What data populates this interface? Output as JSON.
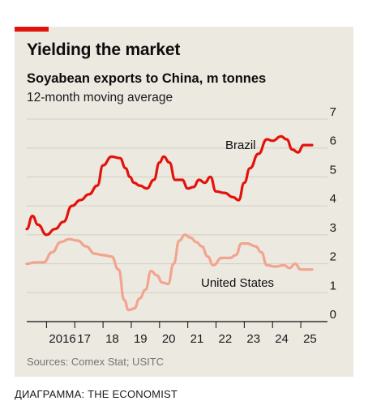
{
  "header": {
    "title": "Yielding the market",
    "subtitle": "Soyabean exports to China, m tonnes",
    "note": "12-month moving average"
  },
  "footer": {
    "source": "Sources: Comex Stat; USITC",
    "credit": "ДИАГРАММА: THE ECONOMIST"
  },
  "colors": {
    "accent": "#e3120b",
    "brazil": "#e3120b",
    "united_states": "#f2a48e",
    "background": "#ece9e1",
    "grid": "#d2cec4"
  },
  "chart_data": {
    "type": "line",
    "title": "Soyabean exports to China, m tonnes",
    "subtitle": "12-month moving average",
    "xlim": [
      2015.3,
      2025.6
    ],
    "ylim": [
      0,
      7
    ],
    "yticks": [
      0,
      1,
      2,
      3,
      4,
      5,
      6,
      7
    ],
    "xticks": [
      {
        "value": 2016,
        "label": "2016"
      },
      {
        "value": 2017,
        "label": "17"
      },
      {
        "value": 2018,
        "label": "18"
      },
      {
        "value": 2019,
        "label": "19"
      },
      {
        "value": 2020,
        "label": "20"
      },
      {
        "value": 2021,
        "label": "21"
      },
      {
        "value": 2022,
        "label": "22"
      },
      {
        "value": 2023,
        "label": "23"
      },
      {
        "value": 2024,
        "label": "24"
      },
      {
        "value": 2025,
        "label": "25"
      }
    ],
    "series": [
      {
        "name": "Brazil",
        "color": "#e3120b",
        "x": [
          2015.3,
          2015.5,
          2015.7,
          2016.0,
          2016.3,
          2016.6,
          2016.9,
          2017.2,
          2017.5,
          2017.8,
          2018.0,
          2018.3,
          2018.6,
          2018.8,
          2018.95,
          2019.1,
          2019.3,
          2019.55,
          2019.8,
          2020.0,
          2020.15,
          2020.35,
          2020.55,
          2020.8,
          2021.0,
          2021.2,
          2021.4,
          2021.6,
          2021.8,
          2022.0,
          2022.3,
          2022.6,
          2022.8,
          2023.0,
          2023.2,
          2023.5,
          2023.8,
          2024.0,
          2024.3,
          2024.5,
          2024.7,
          2024.9,
          2025.1,
          2025.3,
          2025.4
        ],
        "y": [
          3.2,
          3.65,
          3.35,
          3.0,
          3.2,
          3.45,
          4.0,
          4.2,
          4.4,
          4.7,
          5.4,
          5.7,
          5.65,
          5.3,
          5.0,
          4.8,
          4.7,
          4.6,
          4.9,
          5.5,
          5.7,
          5.5,
          4.9,
          4.9,
          4.6,
          4.65,
          4.9,
          4.8,
          5.0,
          4.5,
          4.45,
          4.3,
          4.2,
          4.8,
          5.3,
          5.8,
          6.3,
          6.25,
          6.4,
          6.3,
          5.95,
          5.85,
          6.1,
          6.1,
          6.1
        ]
      },
      {
        "name": "United States",
        "color": "#f2a48e",
        "x": [
          2015.3,
          2015.6,
          2015.9,
          2016.2,
          2016.5,
          2016.8,
          2017.1,
          2017.4,
          2017.7,
          2018.0,
          2018.3,
          2018.55,
          2018.75,
          2018.9,
          2019.1,
          2019.3,
          2019.5,
          2019.7,
          2019.9,
          2020.1,
          2020.3,
          2020.5,
          2020.7,
          2020.9,
          2021.1,
          2021.3,
          2021.5,
          2021.7,
          2021.9,
          2022.2,
          2022.5,
          2022.7,
          2022.9,
          2023.1,
          2023.4,
          2023.6,
          2023.8,
          2024.1,
          2024.4,
          2024.6,
          2024.8,
          2025.0,
          2025.2,
          2025.4
        ],
        "y": [
          2.0,
          2.05,
          2.05,
          2.4,
          2.75,
          2.85,
          2.8,
          2.6,
          2.35,
          2.3,
          2.25,
          1.8,
          0.75,
          0.4,
          0.45,
          0.8,
          1.1,
          1.75,
          1.6,
          1.35,
          1.3,
          2.0,
          2.8,
          3.0,
          2.9,
          2.75,
          2.6,
          2.25,
          1.95,
          2.2,
          2.2,
          2.3,
          2.7,
          2.7,
          2.6,
          2.4,
          1.95,
          1.9,
          1.95,
          1.85,
          2.0,
          1.8,
          1.8,
          1.8
        ]
      }
    ],
    "annotations": [
      {
        "text": "Brazil",
        "series": "Brazil"
      },
      {
        "text": "United States",
        "series": "United States"
      }
    ],
    "grid": true,
    "legend": "none"
  }
}
